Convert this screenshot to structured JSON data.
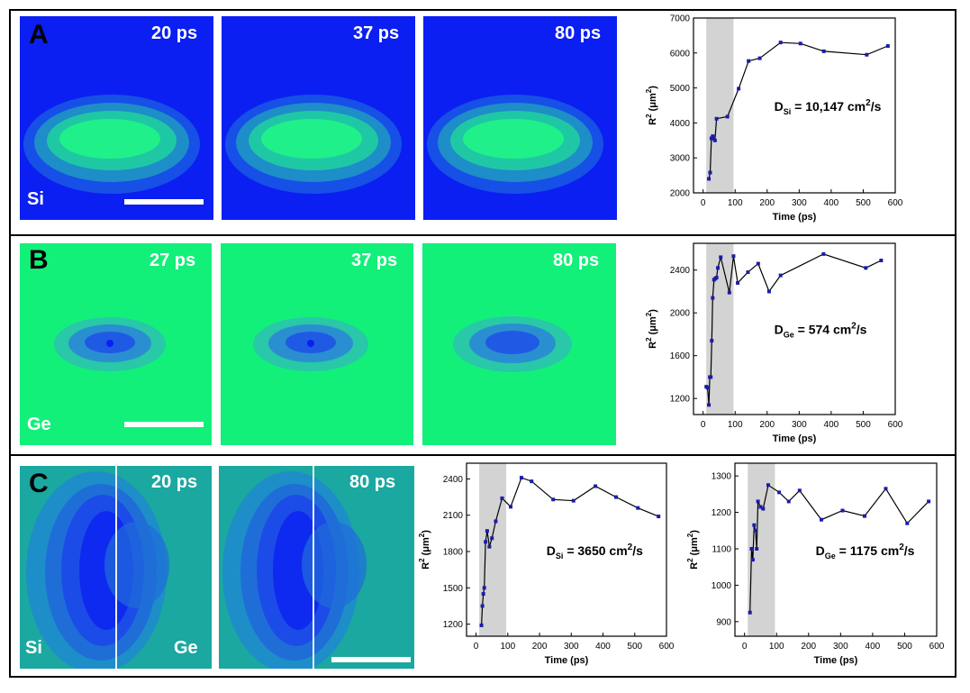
{
  "colors": {
    "si_bg": "#0b1ff2",
    "ge_bg": "#12f07a",
    "het_bg": "#1aa8a0",
    "marker": "#1c1ca8",
    "shade": "#d3d3d3"
  },
  "rows": {
    "A": {
      "letter": "A",
      "material": "Si",
      "frames": [
        "20 ps",
        "37 ps",
        "80 ps"
      ]
    },
    "B": {
      "letter": "B",
      "material": "Ge",
      "frames": [
        "27 ps",
        "37 ps",
        "80 ps"
      ]
    },
    "C": {
      "letter": "C",
      "left_material": "Si",
      "right_material": "Ge",
      "frames": [
        "20 ps",
        "80 ps"
      ]
    }
  },
  "chart_data": [
    {
      "id": "A",
      "type": "line",
      "xlabel": "Time (ps)",
      "ylabel": "R2 (μm2)",
      "ylabel_base": "R",
      "ylabel_sup": "2",
      "ylabel_unit_open": " (μm",
      "ylabel_unit_sup": "2",
      "ylabel_unit_close": ")",
      "xlim": [
        -30,
        600
      ],
      "ylim": [
        2000,
        7000
      ],
      "xticks": [
        0,
        100,
        200,
        300,
        400,
        500,
        600
      ],
      "yticks": [
        2000,
        3000,
        4000,
        5000,
        6000,
        7000
      ],
      "shade": [
        10,
        95
      ],
      "annotation": "DSi = 10,147 cm2/s",
      "annotation_main": "D",
      "annotation_sub": "Si",
      "annotation_value": " = 10,147 cm",
      "annotation_sup": "2",
      "annotation_tail": "/s",
      "x": [
        18,
        22,
        26,
        30,
        33,
        37,
        42,
        76,
        111,
        142,
        177,
        242,
        304,
        377,
        511,
        577
      ],
      "y": [
        2400,
        2580,
        3560,
        3620,
        3550,
        3500,
        4120,
        4180,
        4980,
        5770,
        5850,
        6300,
        6270,
        6050,
        5950,
        6200
      ]
    },
    {
      "id": "B",
      "type": "line",
      "xlabel": "Time (ps)",
      "ylabel": "R2 (μm2)",
      "ylabel_base": "R",
      "ylabel_sup": "2",
      "ylabel_unit_open": " (μm",
      "ylabel_unit_sup": "2",
      "ylabel_unit_close": ")",
      "xlim": [
        -30,
        600
      ],
      "ylim": [
        1050,
        2650
      ],
      "xticks": [
        0,
        100,
        200,
        300,
        400,
        500,
        600
      ],
      "yticks": [
        1200,
        1600,
        2000,
        2400
      ],
      "shade": [
        10,
        95
      ],
      "annotation": "DGe = 574 cm2/s",
      "annotation_main": "D",
      "annotation_sub": "Ge",
      "annotation_value": " = 574 cm",
      "annotation_sup": "2",
      "annotation_tail": "/s",
      "x": [
        10,
        14,
        18,
        21,
        24,
        27,
        30,
        34,
        38,
        42,
        46,
        55,
        82,
        95,
        108,
        140,
        172,
        206,
        242,
        376,
        508,
        556
      ],
      "y": [
        1310,
        1300,
        1140,
        1400,
        1400,
        1740,
        2140,
        2310,
        2320,
        2330,
        2420,
        2520,
        2190,
        2530,
        2280,
        2380,
        2460,
        2200,
        2350,
        2550,
        2420,
        2490
      ]
    },
    {
      "id": "C1",
      "type": "line",
      "xlabel": "Time (ps)",
      "ylabel": "R2 (μm2)",
      "ylabel_base": "R",
      "ylabel_sup": "2",
      "ylabel_unit_open": " (μm",
      "ylabel_unit_sup": "2",
      "ylabel_unit_close": ")",
      "xlim": [
        -30,
        600
      ],
      "ylim": [
        1100,
        2530
      ],
      "xticks": [
        0,
        100,
        200,
        300,
        400,
        500,
        600
      ],
      "yticks": [
        1200,
        1500,
        1800,
        2100,
        2400
      ],
      "shade": [
        10,
        95
      ],
      "annotation": "DSi = 3650 cm2/s",
      "annotation_main": "D",
      "annotation_sub": "Si",
      "annotation_value": " = 3650 cm",
      "annotation_sup": "2",
      "annotation_tail": "/s",
      "x": [
        17,
        20,
        23,
        26,
        30,
        35,
        42,
        50,
        62,
        82,
        109,
        143,
        175,
        243,
        307,
        376,
        441,
        510,
        575
      ],
      "y": [
        1190,
        1350,
        1450,
        1500,
        1880,
        1970,
        1840,
        1910,
        2050,
        2240,
        2170,
        2410,
        2380,
        2230,
        2220,
        2340,
        2250,
        2160,
        2090
      ]
    },
    {
      "id": "C2",
      "type": "line",
      "xlabel": "Time (ps)",
      "ylabel": "R2 (μm2)",
      "ylabel_base": "R",
      "ylabel_sup": "2",
      "ylabel_unit_open": " (μm",
      "ylabel_unit_sup": "2",
      "ylabel_unit_close": ")",
      "xlim": [
        -30,
        600
      ],
      "ylim": [
        860,
        1335
      ],
      "xticks": [
        0,
        100,
        200,
        300,
        400,
        500,
        600
      ],
      "yticks": [
        900,
        1000,
        1100,
        1200,
        1300
      ],
      "shade": [
        10,
        95
      ],
      "annotation": "DGe = 1175 cm2/s",
      "annotation_main": "D",
      "annotation_sub": "Ge",
      "annotation_value": " = 1175 cm",
      "annotation_sup": "2",
      "annotation_tail": "/s",
      "x": [
        17,
        22,
        26,
        30,
        34,
        38,
        42,
        50,
        58,
        74,
        108,
        138,
        172,
        240,
        306,
        375,
        441,
        508,
        575
      ],
      "y": [
        925,
        1100,
        1070,
        1165,
        1150,
        1100,
        1230,
        1215,
        1210,
        1275,
        1255,
        1230,
        1260,
        1180,
        1205,
        1190,
        1265,
        1170,
        1230
      ]
    }
  ]
}
